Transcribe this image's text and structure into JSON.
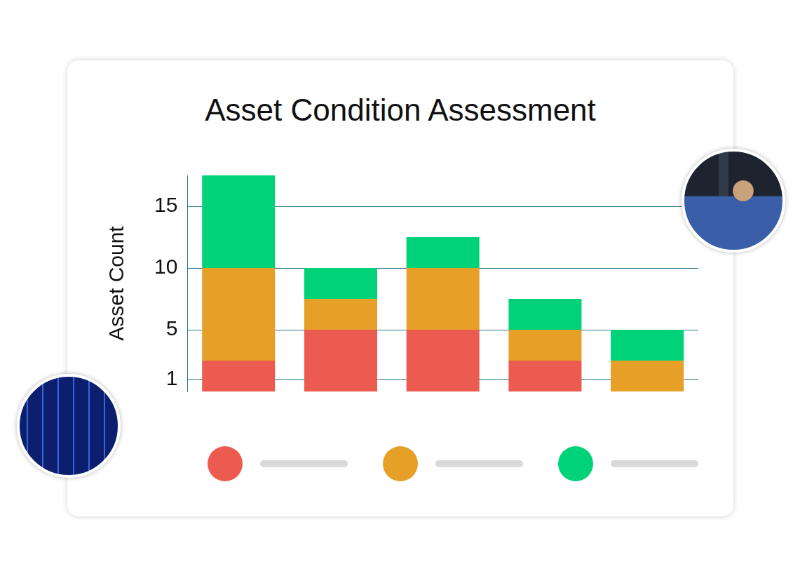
{
  "chart_data": {
    "type": "bar",
    "title": "Asset Condition Assessment",
    "y_label": "Asset Count",
    "categories": [
      null,
      null,
      null,
      null,
      null
    ],
    "series": [
      {
        "color": "#eb5b4f",
        "values": [
          2.5,
          5,
          5,
          2.5,
          0
        ]
      },
      {
        "color": "#e69f27",
        "values": [
          7.5,
          2.5,
          5,
          2.5,
          2.5
        ]
      },
      {
        "color": "#00d27a",
        "values": [
          7.5,
          2.5,
          2.5,
          2.5,
          2.5
        ]
      }
    ],
    "ylim": [
      0,
      17.5
    ],
    "yticks": [
      1,
      5,
      10,
      15
    ],
    "grid": true,
    "stacked": true,
    "tick_labels": "y",
    "legend": "bottom"
  }
}
